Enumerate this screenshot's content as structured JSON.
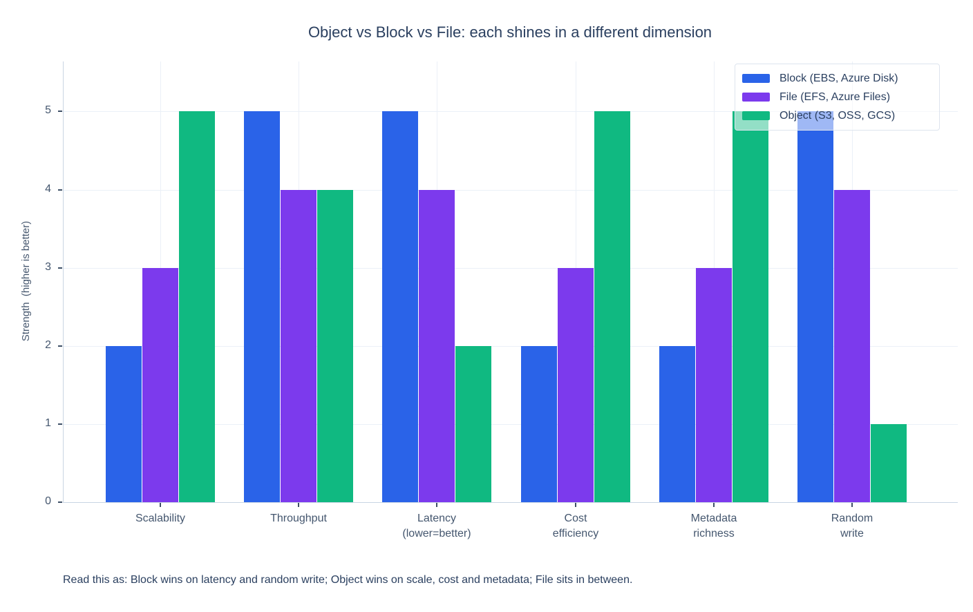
{
  "footnote": "Read this as: Block wins on latency and random write; Object wins on scale, cost and metadata; File sits in between.",
  "chart_data": {
    "type": "bar",
    "title": "Object vs Block vs File: each shines in a different dimension",
    "ylabel": "Strength  (higher is better)",
    "xlabel": "",
    "categories": [
      "Scalability",
      "Throughput",
      "Latency\n(lower=better)",
      "Cost\nefficiency",
      "Metadata\nrichness",
      "Random\nwrite"
    ],
    "series": [
      {
        "name": "Block (EBS, Azure Disk)",
        "color": "#2a63e8",
        "values": [
          2,
          5,
          5,
          2,
          2,
          5
        ]
      },
      {
        "name": "File (EFS, Azure Files)",
        "color": "#7c3aed",
        "values": [
          3,
          4,
          4,
          3,
          3,
          4
        ]
      },
      {
        "name": "Object (S3, OSS, GCS)",
        "color": "#10b981",
        "values": [
          5,
          4,
          2,
          5,
          5,
          1
        ]
      }
    ],
    "yticks": [
      0,
      1,
      2,
      3,
      4,
      5
    ],
    "ylim": [
      0,
      5.64
    ],
    "grid": true,
    "legend_position": "top-right"
  }
}
